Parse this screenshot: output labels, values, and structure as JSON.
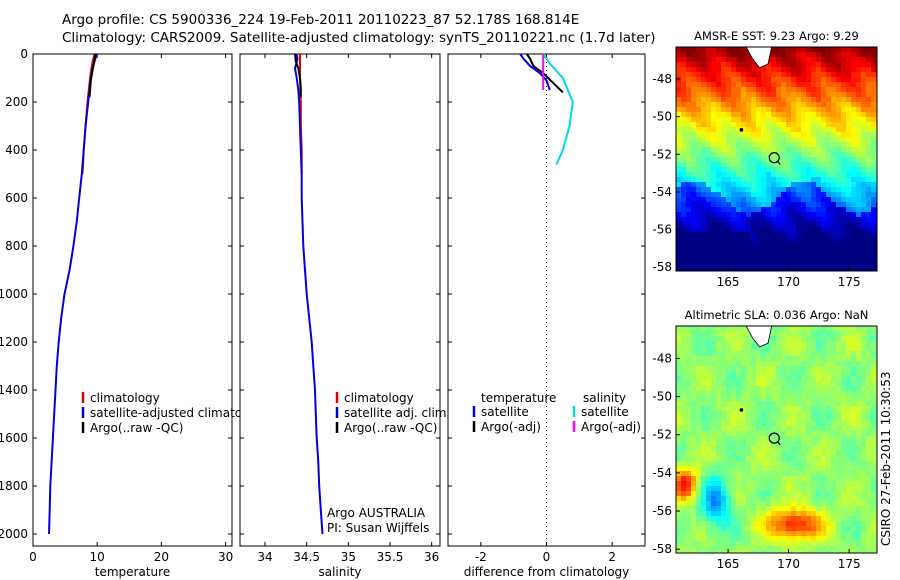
{
  "title_line1": "Argo profile: CS 5900336_224 19-Feb-2011 20110223_87 52.178S 168.814E",
  "title_line2": "Climatology: CARS2009. Satellite-adjusted climatology: synTS_20110221.nc (1.7d later)",
  "chart_data": [
    {
      "type": "line",
      "xlabel": "temperature",
      "xlim": [
        0,
        31
      ],
      "ylim": [
        2050,
        0
      ],
      "x_ticks": [
        "0",
        "10",
        "20",
        "30"
      ],
      "y_ticks": [
        "0",
        "200",
        "400",
        "600",
        "800",
        "1000",
        "1200",
        "1400",
        "1600",
        "1800",
        "2000"
      ],
      "legend": [
        "climatology",
        "satellite-adjusted climatology",
        "Argo(..raw -QC)"
      ],
      "series": [
        {
          "name": "climatology",
          "color": "#e00000",
          "points": [
            [
              9.6,
              0
            ],
            [
              9.5,
              10
            ],
            [
              9.3,
              30
            ],
            [
              9.1,
              60
            ],
            [
              8.9,
              100
            ],
            [
              8.7,
              150
            ],
            [
              8.5,
              200
            ],
            [
              8.3,
              260
            ],
            [
              8.1,
              330
            ],
            [
              7.9,
              400
            ],
            [
              7.8,
              460
            ],
            [
              7.7,
              500
            ]
          ]
        },
        {
          "name": "satellite-adjusted climatology",
          "color": "#0000e0",
          "points": [
            [
              9.8,
              0
            ],
            [
              9.7,
              20
            ],
            [
              9.3,
              60
            ],
            [
              9.0,
              100
            ],
            [
              8.8,
              150
            ],
            [
              8.6,
              200
            ],
            [
              8.2,
              300
            ],
            [
              7.9,
              400
            ],
            [
              7.6,
              500
            ],
            [
              7.2,
              600
            ],
            [
              6.8,
              700
            ],
            [
              6.3,
              800
            ],
            [
              5.7,
              900
            ],
            [
              4.9,
              1000
            ],
            [
              4.4,
              1100
            ],
            [
              4.0,
              1200
            ],
            [
              3.7,
              1300
            ],
            [
              3.5,
              1400
            ],
            [
              3.3,
              1500
            ],
            [
              3.1,
              1600
            ],
            [
              2.9,
              1700
            ],
            [
              2.7,
              1800
            ],
            [
              2.6,
              1900
            ],
            [
              2.5,
              2000
            ]
          ]
        },
        {
          "name": "Argo(..raw -QC)",
          "color": "#000000",
          "points": [
            [
              9.7,
              0
            ],
            [
              9.6,
              20
            ],
            [
              9.4,
              50
            ],
            [
              9.2,
              80
            ],
            [
              9.0,
              110
            ],
            [
              8.9,
              150
            ],
            [
              8.8,
              180
            ]
          ]
        }
      ]
    },
    {
      "type": "line",
      "xlabel": "salinity",
      "xlim": [
        33.7,
        36.1
      ],
      "ylim": [
        2050,
        0
      ],
      "x_ticks": [
        "34",
        "34.5",
        "35",
        "35.5",
        "36"
      ],
      "legend": [
        "climatology",
        "satellite adj. clim.",
        "Argo(..raw -QC)"
      ],
      "annotation": [
        "Argo AUSTRALIA",
        "PI: Susan Wijffels"
      ],
      "series": [
        {
          "name": "climatology",
          "color": "#e00000",
          "points": [
            [
              34.42,
              0
            ],
            [
              34.42,
              100
            ],
            [
              34.43,
              200
            ],
            [
              34.43,
              300
            ],
            [
              34.44,
              400
            ],
            [
              34.44,
              500
            ]
          ]
        },
        {
          "name": "satellite adj. clim.",
          "color": "#0000e0",
          "points": [
            [
              34.38,
              0
            ],
            [
              34.39,
              20
            ],
            [
              34.36,
              60
            ],
            [
              34.38,
              100
            ],
            [
              34.4,
              150
            ],
            [
              34.41,
              200
            ],
            [
              34.42,
              300
            ],
            [
              34.43,
              400
            ],
            [
              34.44,
              500
            ],
            [
              34.44,
              600
            ],
            [
              34.45,
              700
            ],
            [
              34.46,
              800
            ],
            [
              34.48,
              900
            ],
            [
              34.5,
              1000
            ],
            [
              34.53,
              1100
            ],
            [
              34.56,
              1200
            ],
            [
              34.58,
              1300
            ],
            [
              34.6,
              1400
            ],
            [
              34.61,
              1500
            ],
            [
              34.62,
              1600
            ],
            [
              34.64,
              1700
            ],
            [
              34.65,
              1800
            ],
            [
              34.67,
              1900
            ],
            [
              34.69,
              2000
            ]
          ]
        },
        {
          "name": "Argo(..raw -QC)",
          "color": "#000000",
          "points": [
            [
              34.36,
              0
            ],
            [
              34.37,
              30
            ],
            [
              34.4,
              60
            ],
            [
              34.42,
              100
            ],
            [
              34.43,
              140
            ],
            [
              34.43,
              180
            ]
          ]
        }
      ]
    },
    {
      "type": "line",
      "xlabel": "difference from climatology",
      "xlim": [
        -3,
        3
      ],
      "ylim": [
        2050,
        0
      ],
      "x_ticks": [
        "-2",
        "0",
        "2"
      ],
      "legend_left_header": "temperature",
      "legend_right_header": "salinity",
      "legend_left": [
        "satellite",
        "Argo(-adj)"
      ],
      "legend_right": [
        "satellite",
        "Argo(-adj)"
      ],
      "series": [
        {
          "name": "temperature satellite",
          "color": "#0000e0",
          "points": [
            [
              -0.8,
              0
            ],
            [
              -0.7,
              20
            ],
            [
              -0.5,
              50
            ],
            [
              -0.2,
              80
            ],
            [
              0.0,
              110
            ],
            [
              0.1,
              150
            ]
          ]
        },
        {
          "name": "temperature Argo(-adj)",
          "color": "#000000",
          "points": [
            [
              -0.6,
              0
            ],
            [
              -0.5,
              20
            ],
            [
              -0.4,
              50
            ],
            [
              -0.1,
              80
            ],
            [
              0.2,
              120
            ],
            [
              0.5,
              160
            ]
          ]
        },
        {
          "name": "salinity satellite",
          "color": "#00d8e8",
          "points": [
            [
              -0.1,
              0
            ],
            [
              0.1,
              40
            ],
            [
              0.5,
              100
            ],
            [
              0.8,
              200
            ],
            [
              0.7,
              300
            ],
            [
              0.5,
              400
            ],
            [
              0.3,
              460
            ]
          ]
        },
        {
          "name": "salinity Argo(-adj)",
          "color": "#ff00ff",
          "points": [
            [
              -0.1,
              0
            ],
            [
              -0.1,
              100
            ],
            [
              -0.1,
              150
            ]
          ]
        }
      ]
    },
    {
      "type": "heatmap",
      "title": "AMSR-E SST: 9.23 Argo: 9.29",
      "xlim": [
        160.7,
        177.3
      ],
      "ylim": [
        -58.2,
        -46.3
      ],
      "x_ticks": [
        "165",
        "170",
        "175"
      ],
      "y_ticks": [
        "-48",
        "-50",
        "-52",
        "-54",
        "-56",
        "-58"
      ],
      "float_position": [
        168.814,
        -52.178
      ]
    },
    {
      "type": "heatmap",
      "title": "Altimetric SLA: 0.036 Argo: NaN",
      "xlim": [
        160.7,
        177.3
      ],
      "ylim": [
        -58.2,
        -46.3
      ],
      "x_ticks": [
        "165",
        "170",
        "175"
      ],
      "y_ticks": [
        "-48",
        "-50",
        "-52",
        "-54",
        "-56",
        "-58"
      ],
      "float_position": [
        168.814,
        -52.178
      ],
      "side_label": "CSIRO 27-Feb-2011 10:30:53"
    }
  ]
}
